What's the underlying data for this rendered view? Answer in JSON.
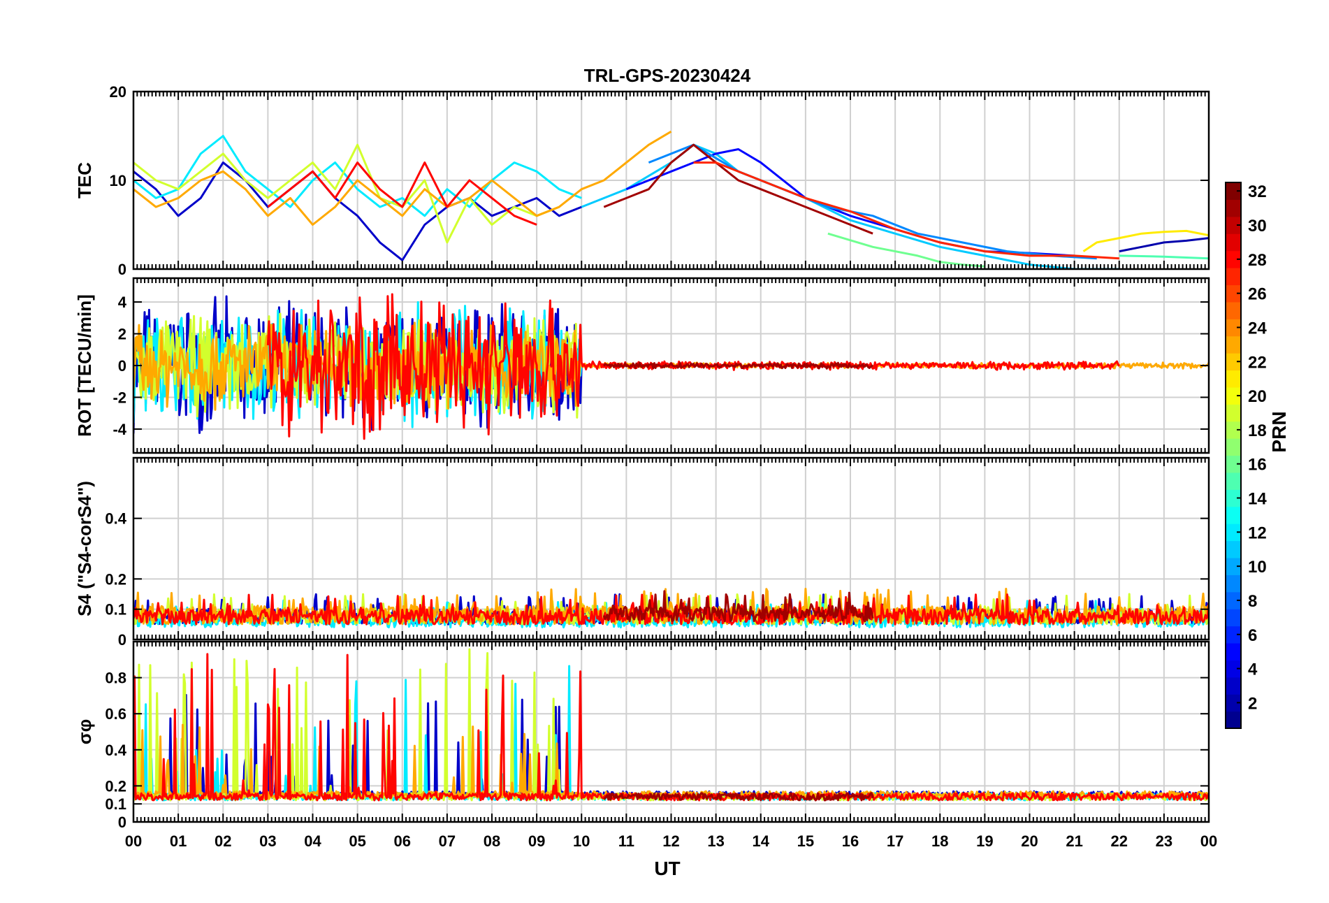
{
  "chart_data": {
    "type": "line",
    "title": "TRL-GPS-20230424",
    "xlabel": "UT",
    "x_range": [
      0,
      24
    ],
    "x_ticks": [
      "00",
      "01",
      "02",
      "03",
      "04",
      "05",
      "06",
      "07",
      "08",
      "09",
      "10",
      "11",
      "12",
      "13",
      "14",
      "15",
      "16",
      "17",
      "18",
      "19",
      "20",
      "21",
      "22",
      "23",
      "00"
    ],
    "grid": true,
    "colorbar": {
      "label": "PRN",
      "range": [
        1,
        32
      ],
      "ticks": [
        2,
        4,
        6,
        8,
        10,
        12,
        14,
        16,
        18,
        20,
        22,
        24,
        26,
        28,
        30,
        32
      ],
      "colormap": [
        "#00008f",
        "#0000ff",
        "#0080ff",
        "#00ffff",
        "#80ff80",
        "#ffff00",
        "#ff8000",
        "#ff0000",
        "#800000"
      ]
    },
    "panels": [
      {
        "id": "tec",
        "ylabel": "TEC",
        "ylim": [
          0,
          20
        ],
        "y_ticks": [
          0,
          10,
          20
        ],
        "series": [
          {
            "prn": 3,
            "x": [
              0.0,
              0.5,
              1.0,
              1.5,
              2.0,
              2.5,
              3.0,
              3.5,
              4.0,
              4.5,
              5.0,
              5.5,
              6.0,
              6.5,
              7.0,
              7.5,
              8.0,
              8.5,
              9.0,
              9.5,
              10.0
            ],
            "y": [
              11,
              9,
              6,
              8,
              12,
              10,
              7,
              9,
              11,
              8,
              6,
              3,
              1,
              5,
              7,
              8,
              6,
              7,
              8,
              6,
              7
            ]
          },
          {
            "prn": 12,
            "x": [
              0.0,
              0.5,
              1.0,
              1.5,
              2.0,
              2.5,
              3.0,
              3.5,
              4.0,
              4.5,
              5.0,
              5.5,
              6.0,
              6.5,
              7.0,
              7.5,
              8.0,
              8.5,
              9.0,
              9.5,
              10.0
            ],
            "y": [
              10,
              8,
              9,
              13,
              15,
              11,
              9,
              7,
              10,
              12,
              9,
              7,
              8,
              6,
              9,
              7,
              10,
              12,
              11,
              9,
              8
            ]
          },
          {
            "prn": 19,
            "x": [
              0.0,
              0.5,
              1.0,
              1.5,
              2.0,
              2.5,
              3.0,
              3.5,
              4.0,
              4.5,
              5.0,
              5.5,
              6.0,
              6.5,
              7.0,
              7.5,
              8.0,
              8.5,
              9.0,
              9.5
            ],
            "y": [
              12,
              10,
              9,
              11,
              13,
              10,
              8,
              10,
              12,
              9,
              14,
              8,
              7,
              10,
              3,
              8,
              5,
              7,
              6,
              7
            ]
          },
          {
            "prn": 23,
            "x": [
              0.0,
              0.5,
              1.0,
              1.5,
              2.0,
              2.5,
              3.0,
              3.5,
              4.0,
              4.5,
              5.0,
              5.5,
              6.0,
              6.5,
              7.0,
              7.5,
              8.0,
              8.5,
              9.0,
              9.5,
              10.0,
              10.5,
              11.0,
              11.5,
              12.0
            ],
            "y": [
              9,
              7,
              8,
              10,
              11,
              9,
              6,
              8,
              5,
              7,
              10,
              8,
              6,
              9,
              7,
              8,
              10,
              8,
              6,
              7,
              9,
              10,
              12,
              14,
              15.5
            ]
          },
          {
            "prn": 28,
            "x": [
              3.0,
              3.5,
              4.0,
              4.5,
              5.0,
              5.5,
              6.0,
              6.5,
              7.0,
              7.5,
              8.0,
              8.5,
              9.0
            ],
            "y": [
              7,
              9,
              11,
              8,
              12,
              9,
              7,
              12,
              7,
              10,
              8,
              6,
              5
            ]
          },
          {
            "prn": 11,
            "x": [
              10.0,
              11.0,
              12.0,
              12.5,
              13.0,
              13.5,
              14.0,
              15.0,
              16.0,
              17.0,
              18.0,
              19.0,
              20.0,
              21.0,
              22.0
            ],
            "y": [
              7,
              9,
              12,
              14,
              13,
              11,
              10,
              8,
              5.5,
              4,
              2.5,
              1.5,
              0.5,
              0,
              0
            ]
          },
          {
            "prn": 5,
            "x": [
              11.0,
              12.0,
              12.5,
              13.0,
              13.5,
              14.0,
              15.0,
              16.0,
              17.0,
              18.0,
              19.0,
              20.0,
              21.0
            ],
            "y": [
              9,
              11,
              12,
              13,
              13.5,
              12,
              8,
              6,
              4.5,
              3,
              2,
              1.8,
              1.5
            ]
          },
          {
            "prn": 9,
            "x": [
              11.5,
              12.5,
              13.5,
              14.5,
              15.5,
              16.5,
              17.5,
              18.5,
              19.5,
              20.5,
              21.5
            ],
            "y": [
              12,
              14,
              11,
              9,
              7,
              6,
              4,
              3,
              2,
              1.5,
              1.2
            ]
          },
          {
            "prn": 31,
            "x": [
              10.5,
              11.5,
              12.0,
              12.5,
              13.0,
              13.5,
              14.0,
              15.0,
              16.0,
              16.5
            ],
            "y": [
              7,
              9,
              12,
              14,
              12,
              10,
              9,
              7,
              5,
              4
            ]
          },
          {
            "prn": 27,
            "x": [
              12.5,
              13.0,
              14.0,
              15.0,
              16.0,
              17.0,
              18.0,
              19.0,
              20.0,
              21.0,
              22.0
            ],
            "y": [
              12,
              12,
              10,
              8,
              6.5,
              4.5,
              3,
              2,
              1.5,
              1.5,
              1.2
            ]
          },
          {
            "prn": 16,
            "x": [
              15.5,
              16.5,
              17.5,
              18.0,
              18.5,
              19.0
            ],
            "y": [
              4,
              2.5,
              1.5,
              0.8,
              0.5,
              0.3
            ]
          },
          {
            "prn": 21,
            "x": [
              21.2,
              21.5,
              22.0,
              22.5,
              23.0,
              23.5,
              24.0
            ],
            "y": [
              2,
              3,
              3.5,
              4,
              4.2,
              4.3,
              3.8
            ]
          },
          {
            "prn": 2,
            "x": [
              22.0,
              22.5,
              23.0,
              23.5,
              24.0
            ],
            "y": [
              2,
              2.5,
              3,
              3.2,
              3.5
            ]
          },
          {
            "prn": 15,
            "x": [
              22.0,
              23.0,
              24.0
            ],
            "y": [
              1.5,
              1.4,
              1.2
            ]
          }
        ]
      },
      {
        "id": "rot",
        "ylabel": "ROT [TECU/min]",
        "ylim": [
          -5.5,
          5.5
        ],
        "y_ticks": [
          -4,
          -2,
          0,
          2,
          4
        ],
        "series": [
          {
            "prn": 3,
            "x_range": [
              0,
              10
            ],
            "amplitude_active": 4.5,
            "amplitude_quiet": 0.3
          },
          {
            "prn": 12,
            "x_range": [
              0,
              10
            ],
            "amplitude_active": 4,
            "amplitude_quiet": 0.3
          },
          {
            "prn": 19,
            "x_range": [
              0,
              10
            ],
            "amplitude_active": 3.5,
            "amplitude_quiet": 0.3
          },
          {
            "prn": 23,
            "x_range": [
              0,
              24
            ],
            "amplitude_active": 3,
            "amplitude_quiet": 0.2
          },
          {
            "prn": 28,
            "x_range": [
              3,
              22
            ],
            "amplitude_active": 5,
            "amplitude_quiet": 0.3
          },
          {
            "prn": 31,
            "x_range": [
              10.5,
              16.5
            ],
            "amplitude_active": 0.4,
            "amplitude_quiet": 0.2
          }
        ]
      },
      {
        "id": "s4",
        "ylabel": "S4 (\"S4-corS4\")",
        "ylim": [
          0,
          0.6
        ],
        "y_ticks": [
          0,
          0.1,
          0.2,
          0.4
        ],
        "series": [
          {
            "prn": 3,
            "x_range": [
              0,
              24
            ],
            "base": 0.05,
            "spread": 0.1
          },
          {
            "prn": 12,
            "x_range": [
              0,
              24
            ],
            "base": 0.04,
            "spread": 0.09
          },
          {
            "prn": 19,
            "x_range": [
              0,
              24
            ],
            "base": 0.05,
            "spread": 0.1
          },
          {
            "prn": 23,
            "x_range": [
              0,
              24
            ],
            "base": 0.05,
            "spread": 0.12
          },
          {
            "prn": 28,
            "x_range": [
              0,
              24
            ],
            "base": 0.05,
            "spread": 0.1
          },
          {
            "prn": 31,
            "x_range": [
              10.5,
              16.5
            ],
            "base": 0.06,
            "spread": 0.1
          }
        ]
      },
      {
        "id": "sigma",
        "ylabel": "σφ",
        "ylim": [
          0,
          1
        ],
        "y_ticks": [
          0,
          0.1,
          0.2,
          0.4,
          0.6,
          0.8
        ],
        "series": [
          {
            "prn": 3,
            "x_range": [
              0,
              24
            ],
            "base": 0.13,
            "active_until": 10,
            "peak": 0.76
          },
          {
            "prn": 12,
            "x_range": [
              0,
              24
            ],
            "base": 0.12,
            "active_until": 10,
            "peak": 0.9
          },
          {
            "prn": 19,
            "x_range": [
              0,
              24
            ],
            "base": 0.12,
            "active_until": 10,
            "peak": 1.0
          },
          {
            "prn": 23,
            "x_range": [
              0,
              24
            ],
            "base": 0.13,
            "active_until": 10,
            "peak": 0.55
          },
          {
            "prn": 28,
            "x_range": [
              0,
              24
            ],
            "base": 0.12,
            "active_until": 10,
            "peak": 1.0
          },
          {
            "prn": 31,
            "x_range": [
              10.5,
              16.5
            ],
            "base": 0.12,
            "active_until": 0,
            "peak": 0.15
          }
        ]
      }
    ]
  }
}
